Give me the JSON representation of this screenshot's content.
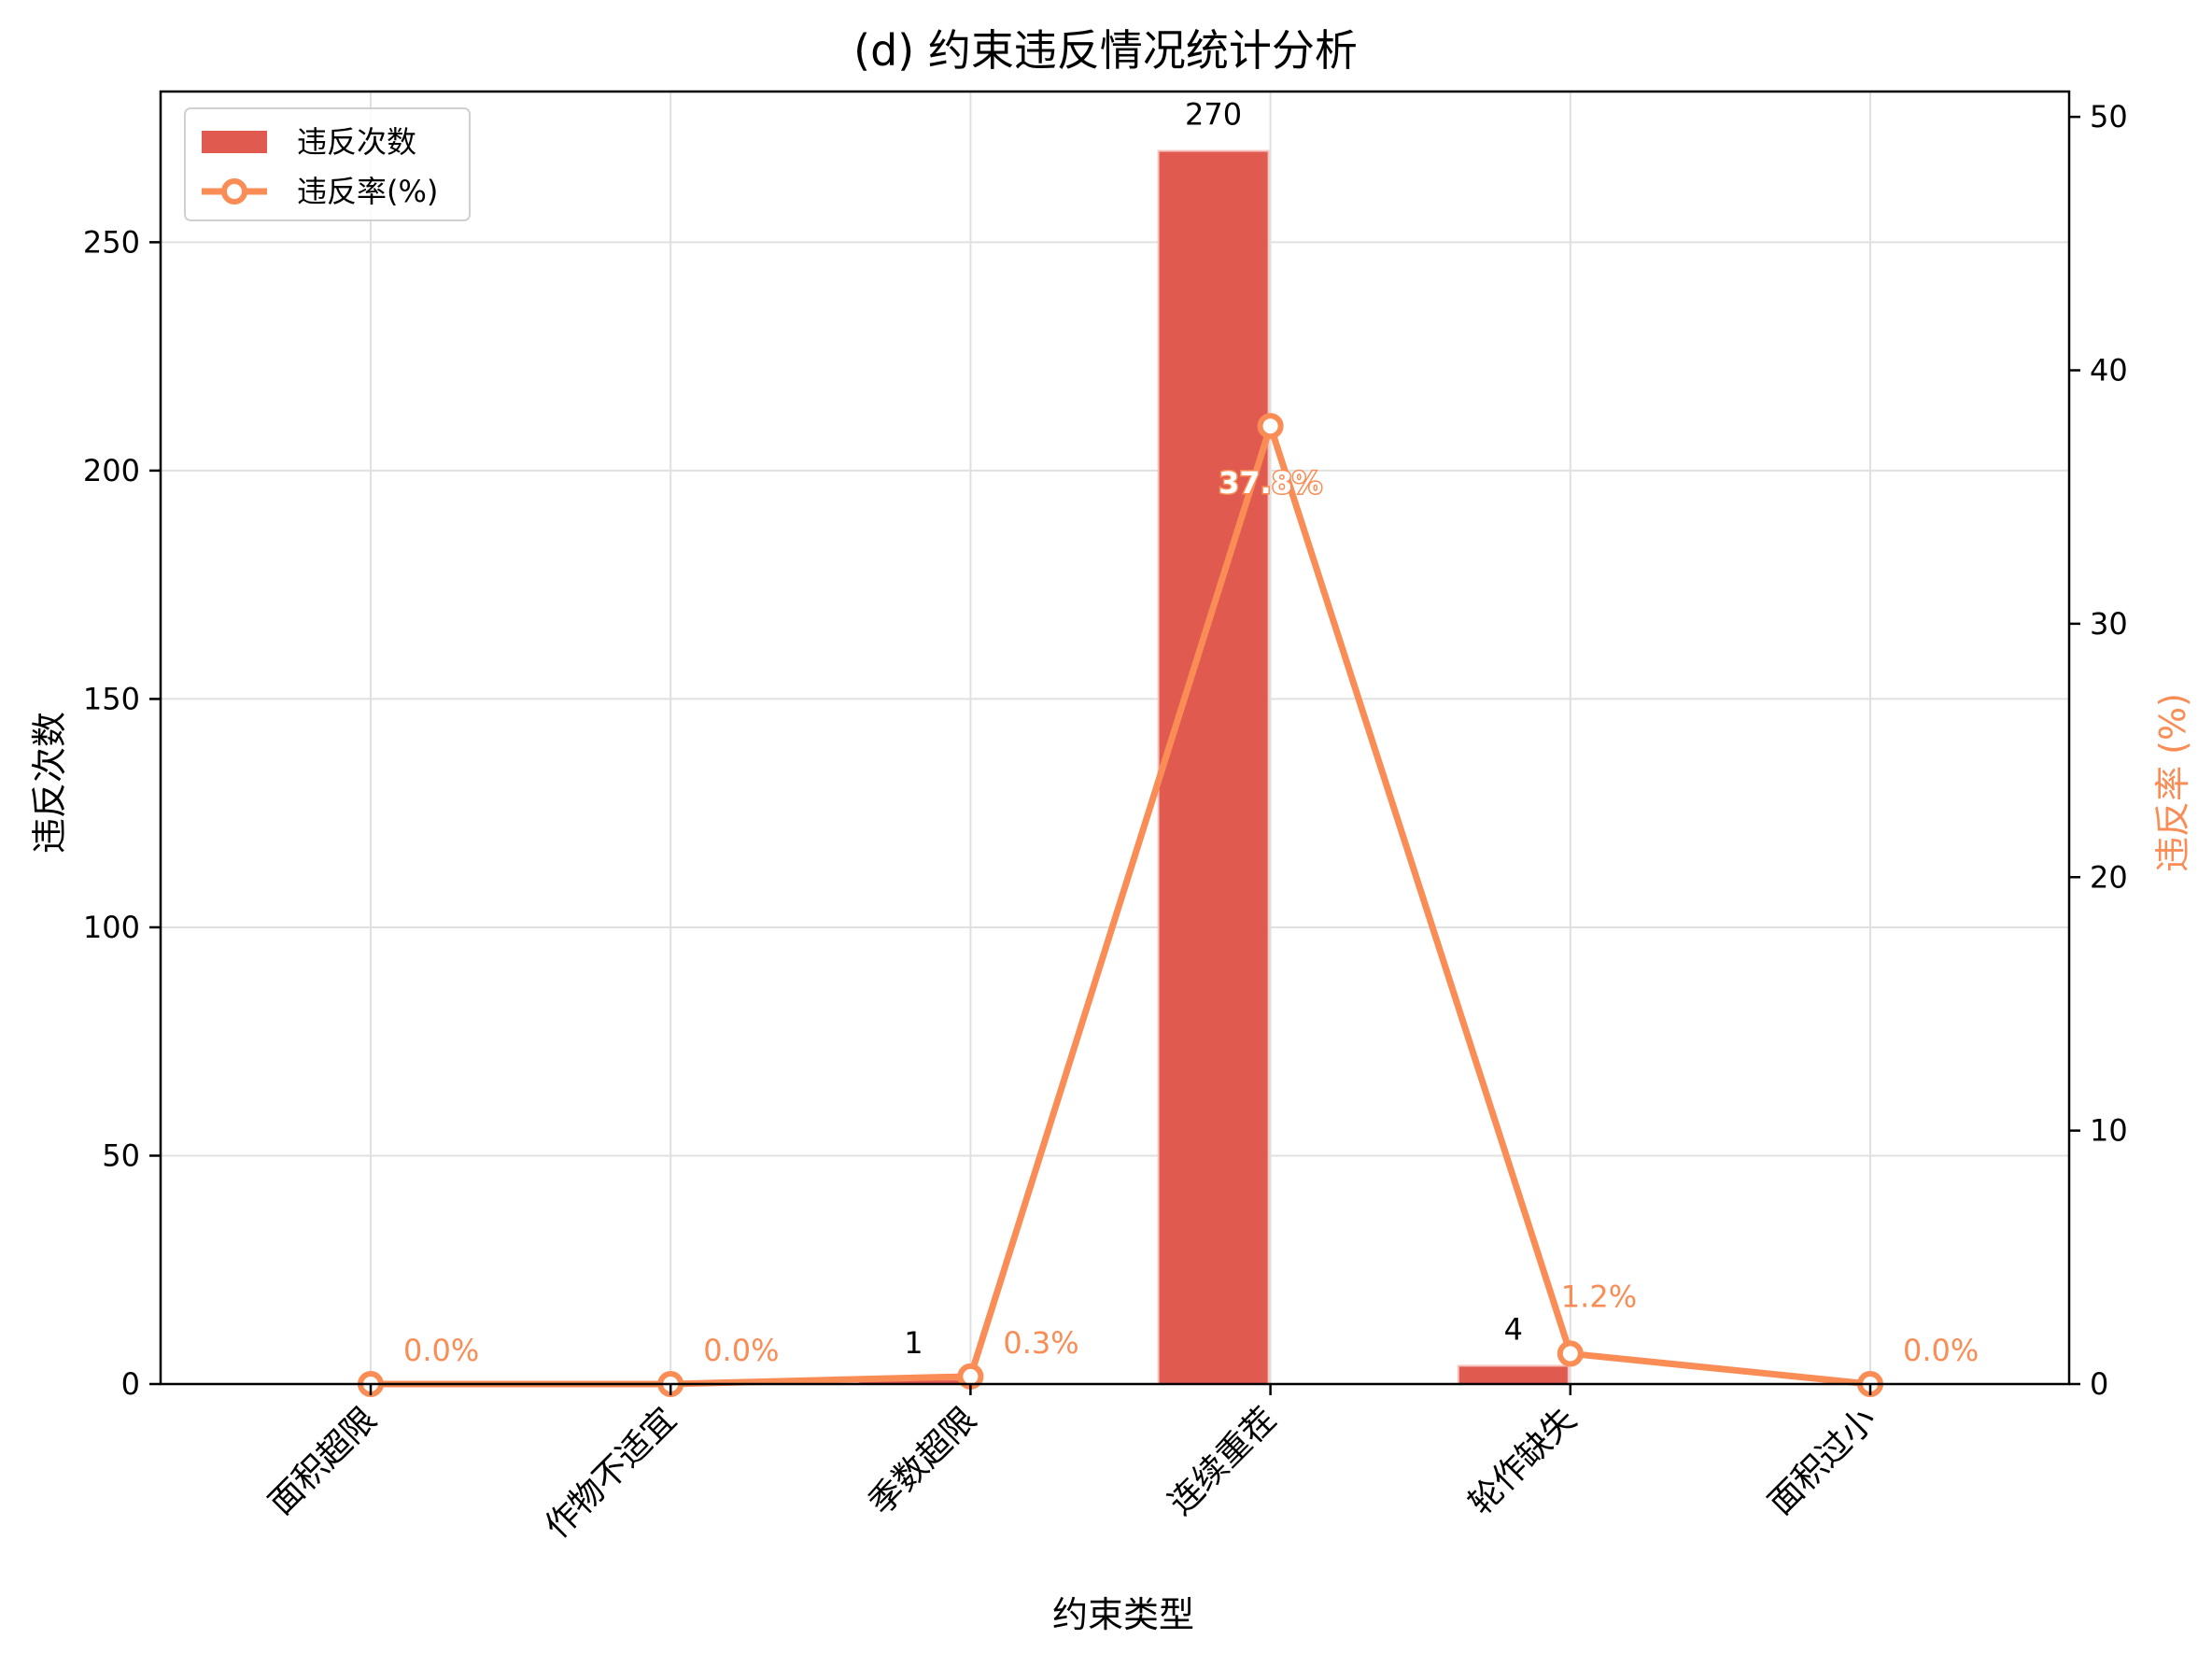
{
  "chart_data": {
    "type": "bar+line",
    "title": "(d) 约束违反情况统计分析",
    "xlabel": "约束类型",
    "ylabel": "违反次数",
    "y2label": "违反率 (%)",
    "categories": [
      "面积超限",
      "作物不适宜",
      "季数超限",
      "连续重茬",
      "轮作缺失",
      "面积过小"
    ],
    "ylim": [
      0,
      283
    ],
    "y2lim": [
      0,
      51
    ],
    "yticks": [
      0,
      50,
      100,
      150,
      200,
      250
    ],
    "y2ticks": [
      0,
      10,
      20,
      30,
      40,
      50
    ],
    "grid": true,
    "legend_position": "upper-left",
    "series": [
      {
        "name": "违反次数",
        "type": "bar",
        "axis": "left",
        "color": "#e05a50",
        "values": [
          0,
          0,
          1,
          270,
          4,
          0
        ],
        "labels": [
          "",
          "",
          "1",
          "270",
          "4",
          ""
        ]
      },
      {
        "name": "违反率(%)",
        "type": "line",
        "axis": "right",
        "color": "#fa8c55",
        "values": [
          0.0,
          0.0,
          0.3,
          37.8,
          1.2,
          0.0
        ],
        "labels": [
          "0.0%",
          "0.0%",
          "0.3%",
          "37.8%",
          "1.2%",
          "0.0%"
        ]
      }
    ]
  }
}
